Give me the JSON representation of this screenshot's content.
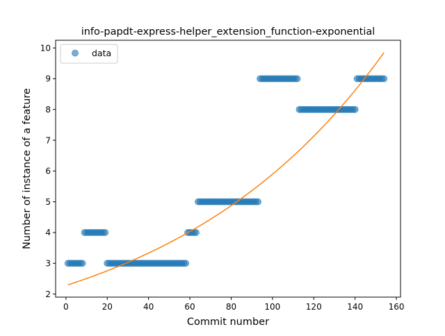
{
  "chart_data": {
    "type": "scatter",
    "title": "info-papdt-express-helper_extension_function-exponential",
    "xlabel": "Commit number",
    "ylabel": "Number of instance of a feature",
    "xlim": [
      -5,
      162
    ],
    "ylim": [
      1.9,
      10.25
    ],
    "xticks": [
      0,
      20,
      40,
      60,
      80,
      100,
      120,
      140,
      160
    ],
    "yticks": [
      2,
      3,
      4,
      5,
      6,
      7,
      8,
      9,
      10
    ],
    "grid": false,
    "legend": {
      "placement": "top-left",
      "entries": [
        {
          "label": "data",
          "marker": "circle",
          "color": "#1f77b4"
        }
      ]
    },
    "colors": {
      "data": "#1f77b4",
      "fit": "#ff7f0e"
    },
    "series": [
      {
        "name": "data",
        "kind": "scatter",
        "segments": [
          {
            "x_from": 1,
            "x_to": 8,
            "y": 3
          },
          {
            "x_from": 9,
            "x_to": 19,
            "y": 4
          },
          {
            "x_from": 20,
            "x_to": 58,
            "y": 3
          },
          {
            "x_from": 59,
            "x_to": 63,
            "y": 4
          },
          {
            "x_from": 64,
            "x_to": 93,
            "y": 5
          },
          {
            "x_from": 94,
            "x_to": 112,
            "y": 9
          },
          {
            "x_from": 113,
            "x_to": 140,
            "y": 8
          },
          {
            "x_from": 141,
            "x_to": 154,
            "y": 9
          }
        ]
      },
      {
        "kind": "line",
        "function": "exponential",
        "x_range": [
          1,
          154
        ],
        "y_start": 2.3,
        "y_end": 9.85
      }
    ]
  }
}
